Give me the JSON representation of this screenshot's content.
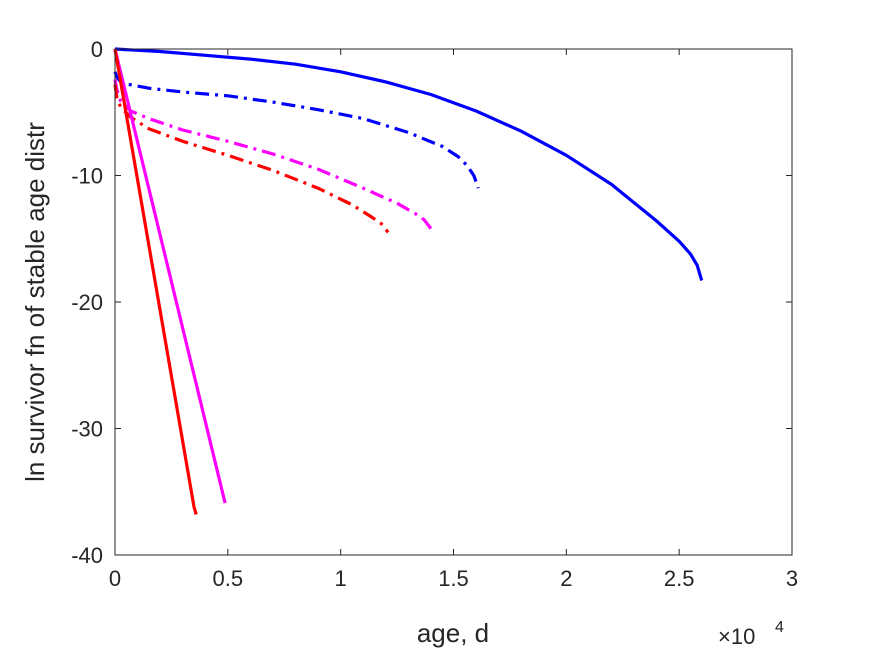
{
  "chart_data": {
    "type": "line",
    "title": "",
    "xlabel": "age, d",
    "ylabel": "ln survivor fn of stable age distr",
    "x_exponent_label": {
      "base": "×10",
      "exp": "4"
    },
    "xlim": [
      0,
      30000
    ],
    "ylim": [
      -40,
      0
    ],
    "xticks": [
      0,
      5000,
      10000,
      15000,
      20000,
      25000,
      30000
    ],
    "xtick_labels": [
      "0",
      "0.5",
      "1",
      "1.5",
      "2",
      "2.5",
      "3"
    ],
    "yticks": [
      -40,
      -30,
      -20,
      -10,
      0
    ],
    "ytick_labels": [
      "-40",
      "-30",
      "-20",
      "-10",
      "0"
    ],
    "grid": false,
    "legend": "none",
    "series": [
      {
        "color": "#0000ff",
        "style": "solid",
        "x": [
          0,
          2000,
          4000,
          6000,
          8000,
          10000,
          12000,
          14000,
          16000,
          18000,
          20000,
          22000,
          24000,
          25000,
          25500,
          25800,
          26000
        ],
        "y": [
          0,
          -0.2,
          -0.5,
          -0.8,
          -1.2,
          -1.8,
          -2.6,
          -3.6,
          -4.9,
          -6.5,
          -8.4,
          -10.7,
          -13.6,
          -15.2,
          -16.2,
          -17.1,
          -18.3
        ]
      },
      {
        "color": "#0000ff",
        "style": "dashdot",
        "x": [
          0,
          80,
          200,
          600,
          1500,
          3000,
          5000,
          7000,
          9000,
          11000,
          13000,
          14500,
          15200,
          15600,
          15900,
          16100
        ],
        "y": [
          -1.8,
          -2.2,
          -2.5,
          -2.8,
          -3.1,
          -3.4,
          -3.7,
          -4.2,
          -4.8,
          -5.5,
          -6.6,
          -7.7,
          -8.5,
          -9.2,
          -10.0,
          -11.0
        ]
      },
      {
        "color": "#ff00ff",
        "style": "dashdot",
        "x": [
          0,
          80,
          250,
          700,
          1500,
          3000,
          5000,
          7000,
          9000,
          11000,
          12500,
          13300,
          13700,
          14000
        ],
        "y": [
          -2.4,
          -3.2,
          -4.1,
          -4.9,
          -5.5,
          -6.4,
          -7.3,
          -8.3,
          -9.5,
          -11.0,
          -12.2,
          -13.0,
          -13.5,
          -14.2
        ]
      },
      {
        "color": "#ff0000",
        "style": "dashdot",
        "x": [
          0,
          80,
          250,
          700,
          1500,
          3000,
          5000,
          7000,
          9000,
          10500,
          11300,
          11800,
          12100
        ],
        "y": [
          -2.8,
          -3.8,
          -4.6,
          -5.4,
          -6.3,
          -7.3,
          -8.4,
          -9.6,
          -11.0,
          -12.3,
          -13.2,
          -13.8,
          -14.5
        ]
      },
      {
        "color": "#ff00ff",
        "style": "solid",
        "x": [
          0,
          4880
        ],
        "y": [
          0,
          -35.9
        ]
      },
      {
        "color": "#ff0000",
        "style": "solid",
        "x": [
          0,
          3500,
          3600
        ],
        "y": [
          0,
          -36.2,
          -36.8
        ]
      }
    ]
  }
}
